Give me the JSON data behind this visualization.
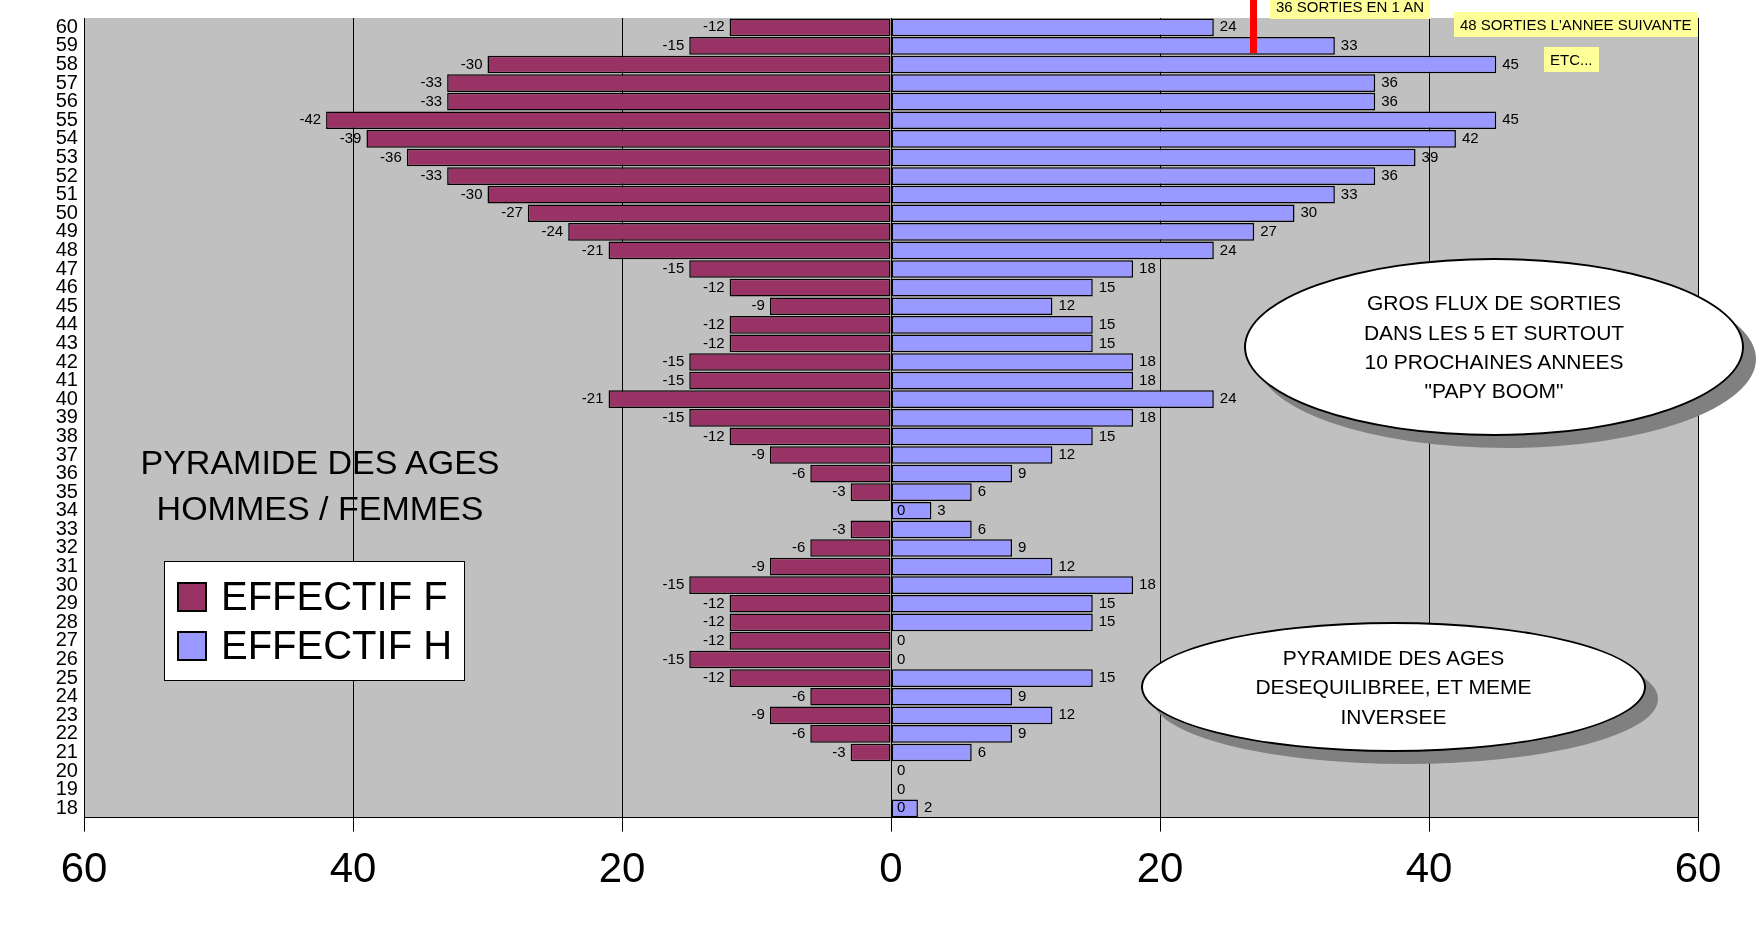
{
  "chart_data": {
    "type": "bar",
    "orientation": "horizontal",
    "stacked": true,
    "title": "PYRAMIDE DES AGES\nHOMMES / FEMMES",
    "categories": [
      "60",
      "59",
      "58",
      "57",
      "56",
      "55",
      "54",
      "53",
      "52",
      "51",
      "50",
      "49",
      "48",
      "47",
      "46",
      "45",
      "44",
      "43",
      "42",
      "41",
      "40",
      "39",
      "38",
      "37",
      "36",
      "35",
      "34",
      "33",
      "32",
      "31",
      "30",
      "29",
      "28",
      "27",
      "26",
      "25",
      "24",
      "23",
      "22",
      "21",
      "20",
      "19",
      "18"
    ],
    "series": [
      {
        "name": "EFFECTIF F",
        "color": "#993366",
        "values": [
          -12,
          -15,
          -30,
          -33,
          -33,
          -42,
          -39,
          -36,
          -33,
          -30,
          -27,
          -24,
          -21,
          -15,
          -12,
          -9,
          -12,
          -12,
          -15,
          -15,
          -21,
          -15,
          -12,
          -9,
          -6,
          -3,
          0,
          -3,
          -6,
          -9,
          -15,
          -12,
          -12,
          -12,
          -15,
          -12,
          -6,
          -9,
          -6,
          -3,
          0,
          0,
          0
        ],
        "value_labels": [
          "-12",
          "-15",
          "-30",
          "-33",
          "-33",
          "-42",
          "-39",
          "-36",
          "-33",
          "-30",
          "-27",
          "-24",
          "-21",
          "-15",
          "-12",
          "-9",
          "-12",
          "-12",
          "-15",
          "-15",
          "-21",
          "-15",
          "-12",
          "-9",
          "-6",
          "-3",
          "0",
          "-3",
          "-6",
          "-9",
          "-15",
          "-12",
          "-12",
          "-12",
          "-15",
          "-12",
          "-6",
          "-9",
          "-6",
          "-3",
          null,
          null,
          "0"
        ]
      },
      {
        "name": "EFFECTIF H",
        "color": "#9999ff",
        "values": [
          24,
          33,
          45,
          36,
          36,
          45,
          42,
          39,
          36,
          33,
          30,
          27,
          24,
          18,
          15,
          12,
          15,
          15,
          18,
          18,
          24,
          18,
          15,
          12,
          9,
          6,
          3,
          6,
          9,
          12,
          18,
          15,
          15,
          0,
          0,
          15,
          9,
          12,
          9,
          6,
          0,
          0,
          2
        ],
        "value_labels": [
          "24",
          "33",
          "45",
          "36",
          "36",
          "45",
          "42",
          "39",
          "36",
          "33",
          "30",
          "27",
          "24",
          "18",
          "15",
          "12",
          "15",
          "15",
          "18",
          "18",
          "24",
          "18",
          "15",
          "12",
          "9",
          "6",
          "3",
          "6",
          "9",
          "12",
          "18",
          "15",
          "15",
          "0",
          "0",
          "15",
          "9",
          "12",
          "9",
          "6",
          "0",
          "0",
          "2"
        ]
      }
    ],
    "xlim": [
      -60,
      60
    ],
    "xticks": [
      {
        "value": -60,
        "label": "60"
      },
      {
        "value": -40,
        "label": "40"
      },
      {
        "value": -20,
        "label": "20"
      },
      0,
      20,
      40,
      60
    ],
    "grid": "x",
    "legend": "left",
    "annotations": [
      "36 SORTIES EN 1 AN",
      "48 SORTIES L'ANNEE SUIVANTE",
      "ETC...",
      "GROS FLUX DE SORTIES\nDANS LES 5 ET SURTOUT\n10 PROCHAINES ANNEES\n\"PAPY BOOM\"",
      "PYRAMIDE DES AGES\nDESEQUILIBREE, ET MEME\nINVERSEE"
    ]
  }
}
